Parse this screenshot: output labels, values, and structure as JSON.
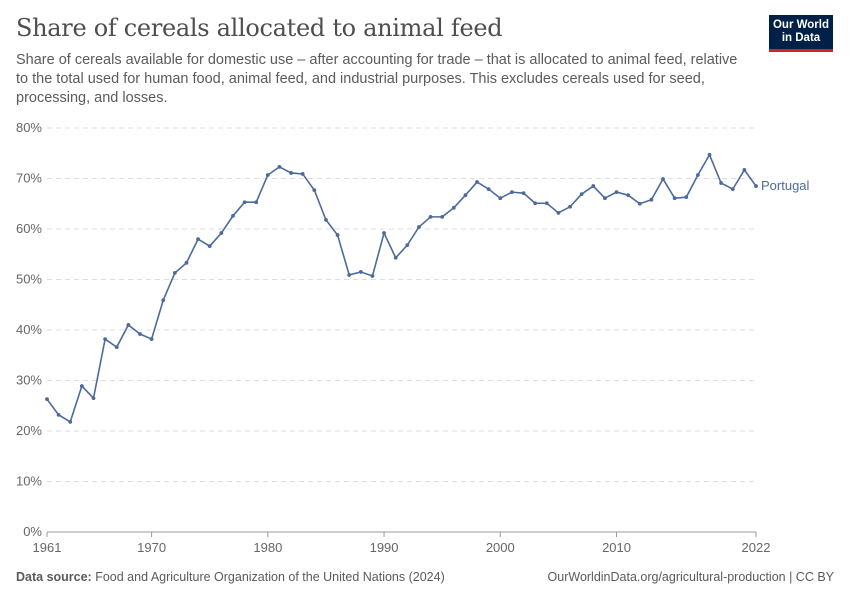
{
  "header": {
    "title": "Share of cereals allocated to animal feed",
    "subtitle": "Share of cereals available for domestic use – after accounting for trade – that is allocated to animal feed, relative to the total used for human food, animal feed, and industrial purposes. This excludes cereals used for seed, processing, and losses.",
    "logo_line1": "Our World",
    "logo_line2": "in Data"
  },
  "footer": {
    "source_label": "Data source:",
    "source": "Food and Agriculture Organization of the United Nations (2024)",
    "link": "OurWorldinData.org/agricultural-production | CC BY"
  },
  "colors": {
    "series": "#4c6a9c",
    "grid": "#dddddd",
    "text": "#666666"
  },
  "chart_data": {
    "type": "line",
    "title": "Share of cereals allocated to animal feed",
    "ylim": [
      0,
      80
    ],
    "xlim": [
      1961,
      2022
    ],
    "yticks": [
      0,
      10,
      20,
      30,
      40,
      50,
      60,
      70,
      80
    ],
    "ytick_labels": [
      "0%",
      "10%",
      "20%",
      "30%",
      "40%",
      "50%",
      "60%",
      "70%",
      "80%"
    ],
    "xticks": [
      1961,
      1970,
      1980,
      1990,
      2000,
      2010,
      2022
    ],
    "xtick_labels": [
      "1961",
      "1970",
      "1980",
      "1990",
      "2000",
      "2010",
      "2022"
    ],
    "grid": "horizontal dashed",
    "legend": "end-of-line label",
    "series": [
      {
        "name": "Portugal",
        "start_year": 1961,
        "values": [
          26.3,
          23.2,
          21.8,
          28.9,
          26.5,
          38.2,
          36.6,
          41.0,
          39.2,
          38.2,
          45.9,
          51.3,
          53.3,
          58.0,
          56.6,
          59.2,
          62.6,
          65.3,
          65.3,
          70.7,
          72.3,
          71.1,
          70.9,
          67.7,
          61.8,
          58.8,
          50.9,
          51.5,
          50.7,
          59.2,
          54.3,
          56.8,
          60.4,
          62.4,
          62.4,
          64.2,
          66.7,
          69.3,
          67.9,
          66.1,
          67.3,
          67.1,
          65.1,
          65.1,
          63.2,
          64.4,
          66.9,
          68.5,
          66.1,
          67.3,
          66.7,
          65.0,
          65.8,
          69.9,
          66.1,
          66.3,
          70.7,
          74.7,
          69.1,
          67.9,
          71.7,
          68.5
        ]
      }
    ]
  }
}
